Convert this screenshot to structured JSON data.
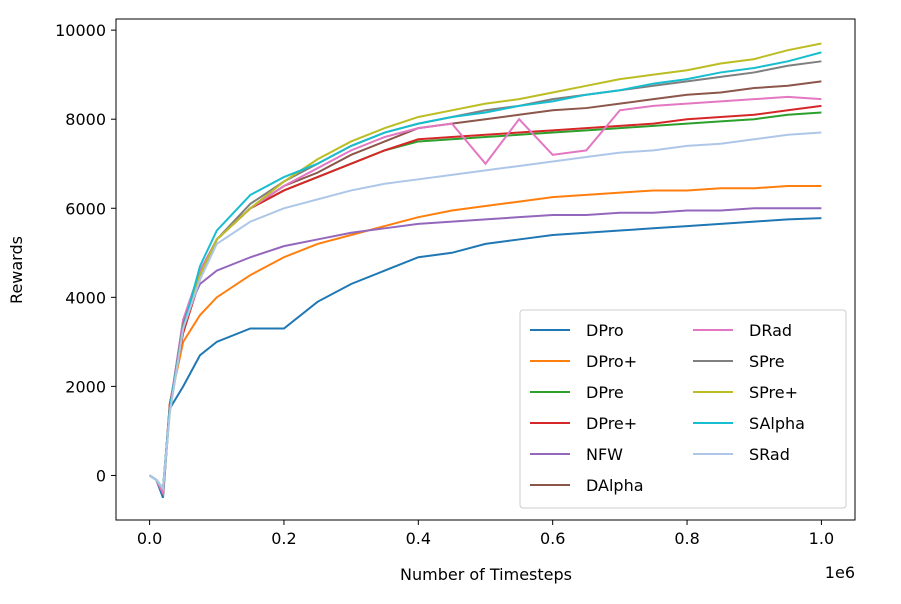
{
  "chart_data": {
    "type": "line",
    "xlabel": "Number of Timesteps",
    "ylabel": "Rewards",
    "x_offset_label": "1e6",
    "x": [
      0,
      0.01,
      0.02,
      0.03,
      0.05,
      0.075,
      0.1,
      0.15,
      0.2,
      0.25,
      0.3,
      0.35,
      0.4,
      0.45,
      0.5,
      0.55,
      0.6,
      0.65,
      0.7,
      0.75,
      0.8,
      0.85,
      0.9,
      0.95,
      1.0
    ],
    "xlim": [
      -0.05,
      1.05
    ],
    "xticks": [
      {
        "value": 0,
        "label": "0.0"
      },
      0.2,
      0.4,
      0.6,
      0.8,
      {
        "value": 1,
        "label": "1.0"
      }
    ],
    "ylim": [
      -1000,
      10250
    ],
    "yticks": [
      0,
      2000,
      4000,
      6000,
      8000,
      10000
    ],
    "grid": false,
    "legend": "lower right",
    "legend_columns": 2,
    "series": [
      {
        "name": "DPro",
        "color": "#1f77b4",
        "values": [
          0,
          -100,
          -500,
          1500,
          2000,
          2700,
          3000,
          3300,
          3300,
          3900,
          4300,
          4600,
          4900,
          5000,
          5200,
          5300,
          5400,
          5450,
          5500,
          5550,
          5600,
          5650,
          5700,
          5750,
          5780
        ]
      },
      {
        "name": "DPro+",
        "color": "#ff7f0e",
        "values": [
          0,
          -100,
          -400,
          1600,
          3000,
          3600,
          4000,
          4500,
          4900,
          5200,
          5400,
          5600,
          5800,
          5950,
          6050,
          6150,
          6250,
          6300,
          6350,
          6400,
          6400,
          6450,
          6450,
          6500,
          6500
        ]
      },
      {
        "name": "DPre",
        "color": "#2ca02c",
        "values": [
          0,
          -100,
          -300,
          1500,
          3300,
          4500,
          5300,
          6000,
          6400,
          6700,
          7000,
          7300,
          7500,
          7550,
          7600,
          7650,
          7700,
          7750,
          7800,
          7850,
          7900,
          7950,
          8000,
          8100,
          8150
        ]
      },
      {
        "name": "DPre+",
        "color": "#d62728",
        "values": [
          0,
          -100,
          -400,
          1600,
          3200,
          4400,
          5300,
          6000,
          6400,
          6700,
          7000,
          7300,
          7550,
          7600,
          7650,
          7700,
          7750,
          7800,
          7850,
          7900,
          8000,
          8050,
          8100,
          8200,
          8300
        ]
      },
      {
        "name": "NFW",
        "color": "#9467bd",
        "values": [
          0,
          -100,
          -300,
          1500,
          3500,
          4300,
          4600,
          4900,
          5150,
          5300,
          5450,
          5550,
          5650,
          5700,
          5750,
          5800,
          5850,
          5850,
          5900,
          5900,
          5950,
          5950,
          6000,
          6000,
          6000
        ]
      },
      {
        "name": "DAlpha",
        "color": "#8c564b",
        "values": [
          0,
          -100,
          -400,
          1500,
          3400,
          4500,
          5300,
          6000,
          6500,
          6800,
          7200,
          7500,
          7800,
          7900,
          8000,
          8100,
          8200,
          8250,
          8350,
          8450,
          8550,
          8600,
          8700,
          8750,
          8850
        ]
      },
      {
        "name": "DRad",
        "color": "#e377c2",
        "values": [
          0,
          -100,
          -400,
          1500,
          3500,
          4600,
          5300,
          6000,
          6500,
          6900,
          7300,
          7600,
          7800,
          7900,
          7000,
          8000,
          7200,
          7300,
          8200,
          8300,
          8350,
          8400,
          8450,
          8500,
          8450
        ]
      },
      {
        "name": "SPre",
        "color": "#7f7f7f",
        "values": [
          0,
          -100,
          -300,
          1500,
          3400,
          4500,
          5300,
          6100,
          6600,
          7000,
          7400,
          7700,
          7900,
          8050,
          8200,
          8300,
          8450,
          8550,
          8650,
          8750,
          8850,
          8950,
          9050,
          9200,
          9300
        ]
      },
      {
        "name": "SPre+",
        "color": "#bcbd22",
        "values": [
          0,
          -100,
          -300,
          1400,
          3300,
          4500,
          5300,
          6000,
          6600,
          7100,
          7500,
          7800,
          8050,
          8200,
          8350,
          8450,
          8600,
          8750,
          8900,
          9000,
          9100,
          9250,
          9350,
          9550,
          9700
        ]
      },
      {
        "name": "SAlpha",
        "color": "#17becf",
        "values": [
          0,
          -100,
          -300,
          1500,
          3300,
          4700,
          5500,
          6300,
          6700,
          7000,
          7400,
          7700,
          7900,
          8050,
          8150,
          8300,
          8400,
          8550,
          8650,
          8800,
          8900,
          9050,
          9150,
          9300,
          9500
        ]
      },
      {
        "name": "SRad",
        "color": "#aec7e8",
        "values": [
          0,
          -100,
          -300,
          1400,
          3300,
          4400,
          5200,
          5700,
          6000,
          6200,
          6400,
          6550,
          6650,
          6750,
          6850,
          6950,
          7050,
          7150,
          7250,
          7300,
          7400,
          7450,
          7550,
          7650,
          7700
        ]
      }
    ]
  }
}
